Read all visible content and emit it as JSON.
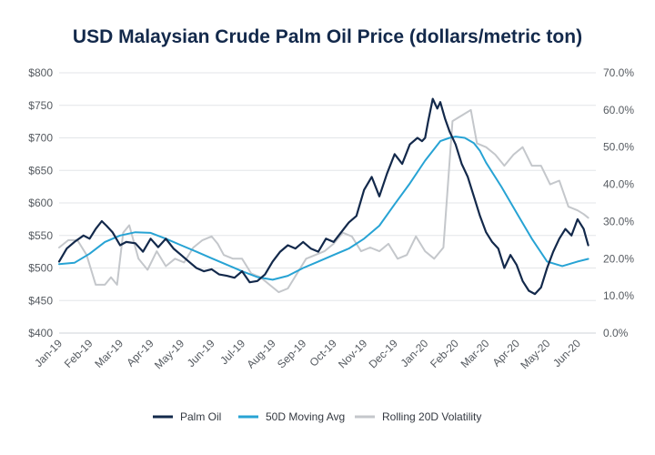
{
  "chart_data": {
    "type": "line",
    "title": "USD Malaysian Crude Palm Oil Price (dollars/metric ton)",
    "x_labels": [
      "Jan-19",
      "Feb-19",
      "Mar-19",
      "Apr-19",
      "May-19",
      "Jun-19",
      "Jul-19",
      "Aug-19",
      "Sep-19",
      "Oct-19",
      "Nov-19",
      "Dec-19",
      "Jan-20",
      "Feb-20",
      "Mar-20",
      "Apr-20",
      "May-20",
      "Jun-20"
    ],
    "x_range": [
      0,
      17.6
    ],
    "y_left": {
      "ticks": [
        "$400",
        "$450",
        "$500",
        "$550",
        "$600",
        "$650",
        "$700",
        "$750",
        "$800"
      ],
      "range": [
        400,
        800
      ]
    },
    "y_right": {
      "ticks": [
        "0.0%",
        "10.0%",
        "20.0%",
        "30.0%",
        "40.0%",
        "50.0%",
        "60.0%",
        "70.0%"
      ],
      "range": [
        0,
        70
      ]
    },
    "grid": true,
    "legend_position": "bottom",
    "series": [
      {
        "name": "Palm Oil",
        "axis": "left",
        "color": "#13294b",
        "x": [
          0,
          0.25,
          0.5,
          0.8,
          1.0,
          1.2,
          1.4,
          1.55,
          1.75,
          2.0,
          2.2,
          2.5,
          2.75,
          3.0,
          3.25,
          3.5,
          3.75,
          4.0,
          4.25,
          4.5,
          4.75,
          5.0,
          5.25,
          5.5,
          5.75,
          6.0,
          6.25,
          6.5,
          6.75,
          7.0,
          7.25,
          7.5,
          7.75,
          8.0,
          8.25,
          8.5,
          8.75,
          9.0,
          9.25,
          9.5,
          9.75,
          10.0,
          10.25,
          10.5,
          10.75,
          11.0,
          11.25,
          11.5,
          11.75,
          11.9,
          12.0,
          12.1,
          12.25,
          12.4,
          12.5,
          12.65,
          12.8,
          13.0,
          13.2,
          13.4,
          13.6,
          13.8,
          14.0,
          14.2,
          14.4,
          14.6,
          14.8,
          15.0,
          15.2,
          15.4,
          15.6,
          15.8,
          16.0,
          16.2,
          16.4,
          16.6,
          16.8,
          17.0,
          17.2,
          17.35
        ],
        "values": [
          510,
          530,
          540,
          550,
          545,
          560,
          572,
          565,
          555,
          535,
          540,
          538,
          525,
          545,
          532,
          545,
          530,
          520,
          510,
          500,
          495,
          498,
          490,
          488,
          485,
          495,
          478,
          480,
          490,
          510,
          525,
          535,
          530,
          540,
          530,
          525,
          545,
          540,
          555,
          570,
          580,
          620,
          640,
          610,
          645,
          675,
          660,
          690,
          700,
          695,
          700,
          725,
          760,
          745,
          755,
          730,
          710,
          690,
          660,
          640,
          610,
          580,
          555,
          540,
          530,
          500,
          520,
          505,
          480,
          465,
          460,
          470,
          500,
          525,
          545,
          560,
          550,
          575,
          560,
          535
        ]
      },
      {
        "name": "50D Moving Avg",
        "axis": "left",
        "color": "#27a3d4",
        "x": [
          0,
          0.5,
          1.0,
          1.5,
          2.0,
          2.5,
          3.0,
          3.5,
          4.0,
          4.5,
          5.0,
          5.5,
          6.0,
          6.5,
          7.0,
          7.5,
          8.0,
          8.5,
          9.0,
          9.5,
          10.0,
          10.5,
          11.0,
          11.5,
          12.0,
          12.5,
          12.8,
          13.0,
          13.3,
          13.6,
          13.8,
          14.0,
          14.5,
          15.0,
          15.5,
          16.0,
          16.5,
          17.0,
          17.35
        ],
        "values": [
          506,
          508,
          522,
          540,
          550,
          555,
          554,
          545,
          535,
          525,
          515,
          505,
          495,
          486,
          482,
          488,
          500,
          510,
          520,
          530,
          545,
          565,
          598,
          630,
          665,
          695,
          700,
          702,
          700,
          692,
          680,
          662,
          625,
          585,
          545,
          510,
          503,
          510,
          514
        ]
      },
      {
        "name": "Rolling 20D Volatility",
        "axis": "right",
        "color": "#c4c7cb",
        "x": [
          0,
          0.3,
          0.6,
          0.9,
          1.2,
          1.5,
          1.7,
          1.9,
          2.1,
          2.3,
          2.6,
          2.9,
          3.2,
          3.5,
          3.8,
          4.1,
          4.4,
          4.7,
          5.0,
          5.2,
          5.4,
          5.7,
          6.0,
          6.3,
          6.6,
          6.9,
          7.2,
          7.5,
          7.8,
          8.1,
          8.4,
          8.7,
          9.0,
          9.3,
          9.6,
          9.9,
          10.2,
          10.5,
          10.8,
          11.1,
          11.4,
          11.7,
          12.0,
          12.3,
          12.6,
          12.9,
          13.1,
          13.3,
          13.5,
          13.7,
          14.0,
          14.3,
          14.6,
          14.9,
          15.2,
          15.5,
          15.8,
          16.1,
          16.4,
          16.7,
          17.0,
          17.2,
          17.35
        ],
        "values": [
          23,
          25,
          25,
          21,
          13,
          13,
          15,
          13,
          27,
          29,
          20,
          17,
          22,
          18,
          20,
          19,
          23,
          25,
          26,
          24,
          21,
          20,
          20,
          16,
          15,
          13,
          11,
          12,
          16,
          20,
          21,
          22,
          24,
          27,
          26,
          22,
          23,
          22,
          24,
          20,
          21,
          26,
          22,
          20,
          23,
          57,
          58,
          59,
          60,
          51,
          50,
          48,
          45,
          48,
          50,
          45,
          45,
          40,
          41,
          34,
          33,
          32,
          31
        ]
      }
    ]
  },
  "legend": [
    {
      "label": "Palm Oil",
      "color": "#13294b"
    },
    {
      "label": "50D Moving Avg",
      "color": "#27a3d4"
    },
    {
      "label": "Rolling 20D Volatility",
      "color": "#c4c7cb"
    }
  ]
}
